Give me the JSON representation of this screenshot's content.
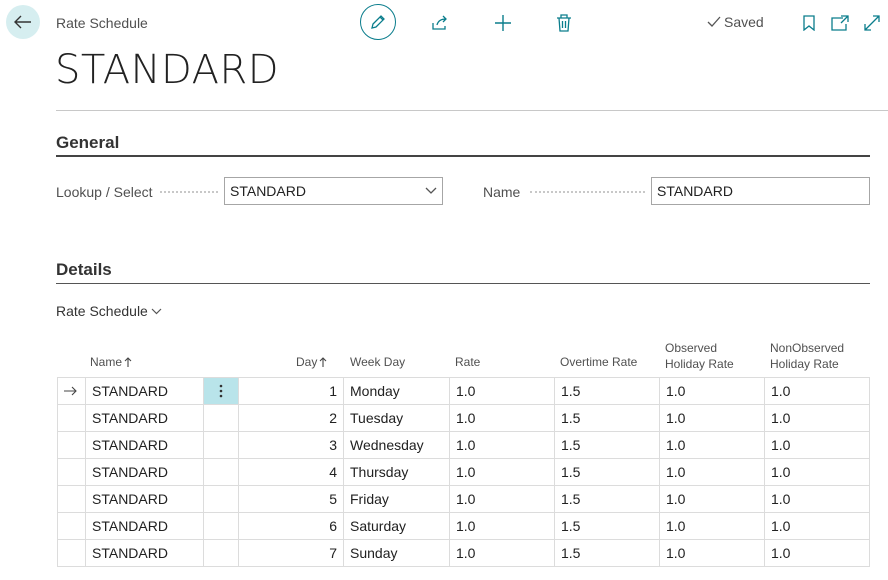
{
  "header": {
    "breadcrumb": "Rate Schedule",
    "saved_label": "Saved",
    "title": "STANDARD"
  },
  "general": {
    "heading": "General",
    "lookup_label": "Lookup / Select",
    "lookup_value": "STANDARD",
    "name_label": "Name",
    "name_value": "STANDARD"
  },
  "details": {
    "heading": "Details",
    "subnav_label": "Rate Schedule",
    "columns": {
      "name": "Name",
      "day": "Day",
      "week_day": "Week Day",
      "rate": "Rate",
      "overtime_rate": "Overtime Rate",
      "observed_holiday_rate_1": "Observed",
      "observed_holiday_rate_2": "Holiday Rate",
      "nonobserved_holiday_rate_1": "NonObserved",
      "nonobserved_holiday_rate_2": "Holiday Rate"
    },
    "rows": [
      {
        "name": "STANDARD",
        "day": "1",
        "week_day": "Monday",
        "rate": "1.0",
        "overtime": "1.5",
        "observed": "1.0",
        "nonobserved": "1.0"
      },
      {
        "name": "STANDARD",
        "day": "2",
        "week_day": "Tuesday",
        "rate": "1.0",
        "overtime": "1.5",
        "observed": "1.0",
        "nonobserved": "1.0"
      },
      {
        "name": "STANDARD",
        "day": "3",
        "week_day": "Wednesday",
        "rate": "1.0",
        "overtime": "1.5",
        "observed": "1.0",
        "nonobserved": "1.0"
      },
      {
        "name": "STANDARD",
        "day": "4",
        "week_day": "Thursday",
        "rate": "1.0",
        "overtime": "1.5",
        "observed": "1.0",
        "nonobserved": "1.0"
      },
      {
        "name": "STANDARD",
        "day": "5",
        "week_day": "Friday",
        "rate": "1.0",
        "overtime": "1.5",
        "observed": "1.0",
        "nonobserved": "1.0"
      },
      {
        "name": "STANDARD",
        "day": "6",
        "week_day": "Saturday",
        "rate": "1.0",
        "overtime": "1.5",
        "observed": "1.0",
        "nonobserved": "1.0"
      },
      {
        "name": "STANDARD",
        "day": "7",
        "week_day": "Sunday",
        "rate": "1.0",
        "overtime": "1.5",
        "observed": "1.0",
        "nonobserved": "1.0"
      }
    ]
  },
  "colors": {
    "accent": "#0a7d8c",
    "back_bg": "#d6eef0",
    "selected_cell": "#b9e4ea"
  },
  "icons": [
    "back-arrow-icon",
    "pencil-icon",
    "share-icon",
    "plus-icon",
    "trash-icon",
    "checkmark-icon",
    "bookmark-icon",
    "open-new-window-icon",
    "expand-icon",
    "chevron-down-icon",
    "sort-ascending-icon",
    "row-arrow-icon",
    "more-vertical-icon"
  ]
}
